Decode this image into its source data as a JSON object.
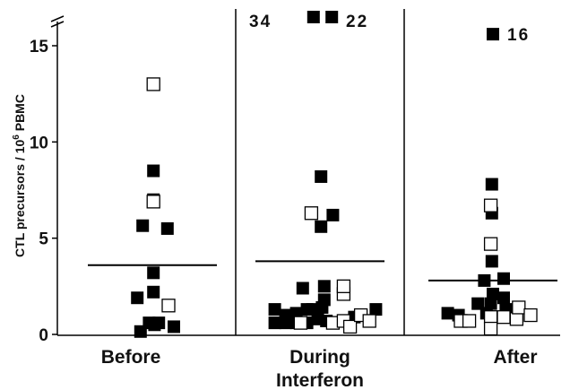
{
  "chart_data": {
    "type": "scatter",
    "title": "",
    "ylabel": "CTL precursors / 10",
    "ylabel_sup": "6",
    "ylabel_suffix": " PBMC",
    "ylim": [
      0,
      15
    ],
    "yticks": [
      0,
      5,
      10,
      15
    ],
    "ytick_labels": [
      "0",
      "5",
      "10",
      "15"
    ],
    "axis_break": true,
    "grid": false,
    "legend": "none",
    "groups": [
      {
        "name": "Before",
        "mean": 3.6,
        "filled": [
          [
            -0.55,
            0.15
          ],
          [
            0.1,
            0.5
          ],
          [
            -0.15,
            0.6
          ],
          [
            0.3,
            0.6
          ],
          [
            1.0,
            0.4
          ],
          [
            -0.7,
            1.9
          ],
          [
            0.05,
            2.2
          ],
          [
            0.05,
            3.2
          ],
          [
            -0.45,
            5.65
          ],
          [
            0.7,
            5.5
          ],
          [
            0.05,
            8.5
          ],
          [
            0.05,
            7.0
          ]
        ],
        "open": [
          [
            0.75,
            1.5
          ],
          [
            0.05,
            6.9
          ],
          [
            0.05,
            13.0
          ]
        ]
      },
      {
        "name": "During",
        "name_line2": "Interferon",
        "mean": 3.8,
        "filled": [
          [
            -2.1,
            0.6
          ],
          [
            -1.6,
            0.6
          ],
          [
            -1.1,
            0.6
          ],
          [
            -0.6,
            0.6
          ],
          [
            -0.1,
            0.8
          ],
          [
            0.3,
            0.7
          ],
          [
            1.6,
            0.9
          ],
          [
            2.6,
            1.3
          ],
          [
            -2.1,
            1.3
          ],
          [
            -1.6,
            1.0
          ],
          [
            -1.1,
            1.1
          ],
          [
            -0.6,
            1.3
          ],
          [
            -0.35,
            1.3
          ],
          [
            0.1,
            1.4
          ],
          [
            0.2,
            1.8
          ],
          [
            -0.8,
            2.4
          ],
          [
            0.2,
            2.5
          ],
          [
            0.05,
            8.2
          ],
          [
            0.05,
            5.6
          ],
          [
            0.6,
            6.2
          ]
        ],
        "open": [
          [
            -0.9,
            0.6
          ],
          [
            0.6,
            0.6
          ],
          [
            1.1,
            0.7
          ],
          [
            1.4,
            0.4
          ],
          [
            1.9,
            1.0
          ],
          [
            2.3,
            0.7
          ],
          [
            1.1,
            2.1
          ],
          [
            1.1,
            2.5
          ],
          [
            -0.4,
            6.3
          ]
        ],
        "offscale": [
          {
            "x": -0.3,
            "label": "34"
          },
          {
            "x": 0.55,
            "label": "22"
          }
        ]
      },
      {
        "name": "After",
        "mean": 2.8,
        "filled": [
          [
            -2.1,
            1.1
          ],
          [
            -1.6,
            1.0
          ],
          [
            -0.3,
            1.1
          ],
          [
            0.6,
            1.3
          ],
          [
            -0.7,
            1.6
          ],
          [
            -0.1,
            1.6
          ],
          [
            0.5,
            1.9
          ],
          [
            0.0,
            2.1
          ],
          [
            -0.4,
            2.8
          ],
          [
            0.5,
            2.9
          ],
          [
            -0.05,
            3.8
          ],
          [
            -0.05,
            6.3
          ],
          [
            -0.05,
            7.8
          ],
          [
            0.0,
            15.6
          ]
        ],
        "open": [
          [
            -1.5,
            0.7
          ],
          [
            -1.1,
            0.7
          ],
          [
            -0.1,
            0.9
          ],
          [
            -0.1,
            0.3
          ],
          [
            0.5,
            0.9
          ],
          [
            1.1,
            0.8
          ],
          [
            1.2,
            1.4
          ],
          [
            1.75,
            1.0
          ],
          [
            -0.1,
            4.7
          ],
          [
            -0.1,
            6.7
          ]
        ],
        "annotation": {
          "y": 15.6,
          "label": "16"
        }
      }
    ]
  }
}
